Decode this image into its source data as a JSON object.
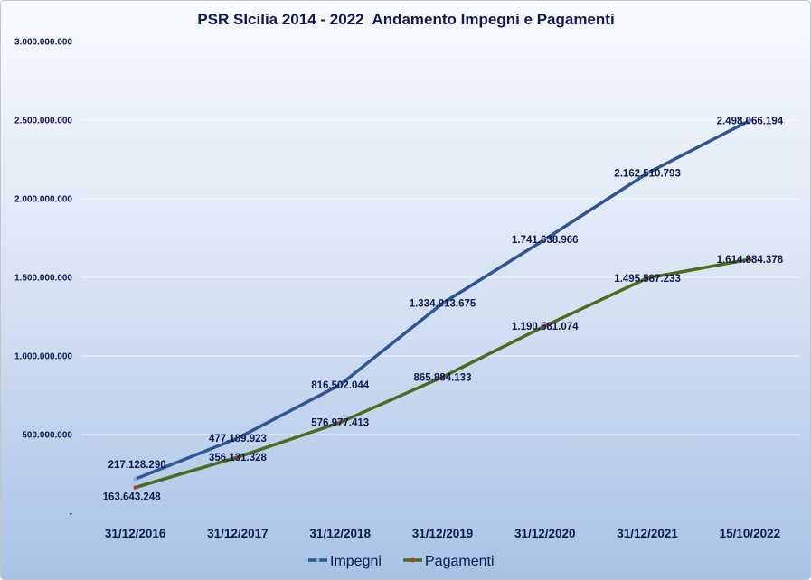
{
  "chart_data": {
    "type": "line",
    "title": "PSR SIcilia 2014 - 2022  Andamento Impegni e Pagamenti",
    "xlabel": "",
    "ylabel": "",
    "categories": [
      "31/12/2016",
      "31/12/2017",
      "31/12/2018",
      "31/12/2019",
      "31/12/2020",
      "31/12/2021",
      "15/10/2022"
    ],
    "series": [
      {
        "name": "Impegni",
        "values": [
          217128290,
          477189923,
          816502044,
          1334913675,
          1741638966,
          2162510793,
          2498066194
        ],
        "color": "#2e5597",
        "marker_color": "#8eaadb"
      },
      {
        "name": "Pagamenti",
        "values": [
          163643248,
          356131328,
          576977413,
          865884133,
          1190581074,
          1495587233,
          1614884378
        ],
        "color": "#4b6b1d",
        "marker_color": "#c0392b"
      }
    ],
    "ylim": [
      0,
      3000000000
    ],
    "yticks": [
      0,
      500000000,
      1000000000,
      1500000000,
      2000000000,
      2500000000,
      3000000000
    ],
    "ytick_labels": [
      "-",
      "500.000.000",
      "1.000.000.000",
      "1.500.000.000",
      "2.000.000.000",
      "2.500.000.000",
      "3.000.000.000"
    ],
    "grid": true,
    "data_labels": true,
    "legend": "bottom"
  }
}
